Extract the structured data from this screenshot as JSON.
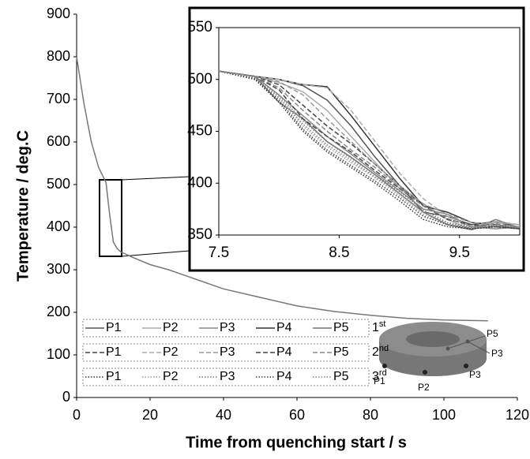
{
  "chart_data": [
    {
      "type": "line",
      "xlabel": "Time from quenching start / s",
      "ylabel": "Temperature / deg.C",
      "x": [
        0,
        2,
        4,
        6,
        8,
        9,
        10,
        11,
        12,
        15,
        20,
        25,
        30,
        40,
        50,
        60,
        70,
        80,
        90,
        100,
        112
      ],
      "series": [
        {
          "color": "#777777",
          "values": [
            800,
            690,
            600,
            540,
            505,
            430,
            365,
            350,
            342,
            330,
            312,
            300,
            285,
            255,
            235,
            215,
            202,
            193,
            186,
            182,
            180
          ]
        }
      ],
      "xlim": [
        0,
        120
      ],
      "xticks": [
        0,
        20,
        40,
        60,
        80,
        100,
        120
      ],
      "ylim": [
        0,
        900
      ],
      "yticks": [
        0,
        100,
        200,
        300,
        400,
        500,
        600,
        700,
        800,
        900
      ]
    },
    {
      "type": "line",
      "x": [
        7.5,
        7.8,
        8.0,
        8.2,
        8.4,
        8.6,
        8.8,
        9.0,
        9.2,
        9.4,
        9.6,
        9.8,
        10.0
      ],
      "xlim": [
        7.5,
        10
      ],
      "xticks": [
        7.5,
        8.5,
        9.5
      ],
      "ylim": [
        350,
        550
      ],
      "yticks": [
        350,
        400,
        450,
        500,
        550
      ],
      "run_labels": [
        {
          "text": "1",
          "sup": "st",
          "dash": "solid"
        },
        {
          "text": "2",
          "sup": "nd",
          "dash": "dashed"
        },
        {
          "text": "3",
          "sup": "rd",
          "dash": "dotted"
        }
      ],
      "series": [
        {
          "name": "P1",
          "run": 0,
          "color": "#555555",
          "values": [
            508,
            503,
            500,
            494,
            480,
            455,
            425,
            398,
            372,
            368,
            360,
            363,
            357
          ]
        },
        {
          "name": "P2",
          "run": 0,
          "color": "#aaaaaa",
          "values": [
            508,
            503,
            497,
            488,
            470,
            445,
            420,
            395,
            380,
            365,
            355,
            362,
            360
          ]
        },
        {
          "name": "P3",
          "run": 0,
          "color": "#888888",
          "values": [
            508,
            503,
            485,
            465,
            445,
            428,
            410,
            393,
            375,
            370,
            358,
            356,
            358
          ]
        },
        {
          "name": "P4",
          "run": 0,
          "color": "#333333",
          "values": [
            508,
            503,
            500,
            495,
            493,
            465,
            435,
            405,
            378,
            372,
            362,
            360,
            356
          ]
        },
        {
          "name": "P5",
          "run": 0,
          "color": "#777777",
          "values": [
            508,
            503,
            478,
            462,
            440,
            425,
            408,
            390,
            372,
            360,
            355,
            365,
            357
          ]
        },
        {
          "name": "P1",
          "run": 1,
          "color": "#444444",
          "values": [
            508,
            503,
            495,
            475,
            455,
            438,
            418,
            398,
            378,
            365,
            360,
            358,
            357
          ]
        },
        {
          "name": "P2",
          "run": 1,
          "color": "#aaaaaa",
          "values": [
            508,
            503,
            500,
            495,
            492,
            470,
            440,
            410,
            385,
            368,
            358,
            363,
            360
          ]
        },
        {
          "name": "P3",
          "run": 1,
          "color": "#999999",
          "values": [
            508,
            503,
            498,
            485,
            462,
            440,
            418,
            398,
            380,
            370,
            362,
            360,
            358
          ]
        },
        {
          "name": "P4",
          "run": 1,
          "color": "#444444",
          "values": [
            508,
            503,
            490,
            462,
            445,
            430,
            412,
            395,
            378,
            365,
            360,
            358,
            356
          ]
        },
        {
          "name": "P5",
          "run": 1,
          "color": "#888888",
          "values": [
            508,
            503,
            492,
            470,
            450,
            432,
            415,
            396,
            378,
            366,
            358,
            361,
            357
          ]
        },
        {
          "name": "P1",
          "run": 2,
          "color": "#333333",
          "values": [
            508,
            500,
            478,
            450,
            430,
            415,
            400,
            383,
            365,
            358,
            356,
            358,
            356
          ]
        },
        {
          "name": "P2",
          "run": 2,
          "color": "#999999",
          "values": [
            508,
            502,
            482,
            455,
            435,
            420,
            405,
            388,
            370,
            360,
            357,
            359,
            357
          ]
        },
        {
          "name": "P3",
          "run": 2,
          "color": "#777777",
          "values": [
            508,
            503,
            485,
            460,
            440,
            424,
            408,
            392,
            374,
            362,
            358,
            360,
            357
          ]
        },
        {
          "name": "P4",
          "run": 2,
          "color": "#444444",
          "values": [
            508,
            501,
            480,
            452,
            432,
            417,
            402,
            386,
            368,
            360,
            356,
            358,
            356
          ]
        },
        {
          "name": "P5",
          "run": 2,
          "color": "#888888",
          "values": [
            508,
            502,
            483,
            457,
            437,
            422,
            406,
            390,
            372,
            361,
            357,
            359,
            357
          ]
        }
      ]
    }
  ],
  "illustration": {
    "labels": [
      "P5",
      "P3",
      "P3",
      "P1",
      "P2"
    ]
  }
}
